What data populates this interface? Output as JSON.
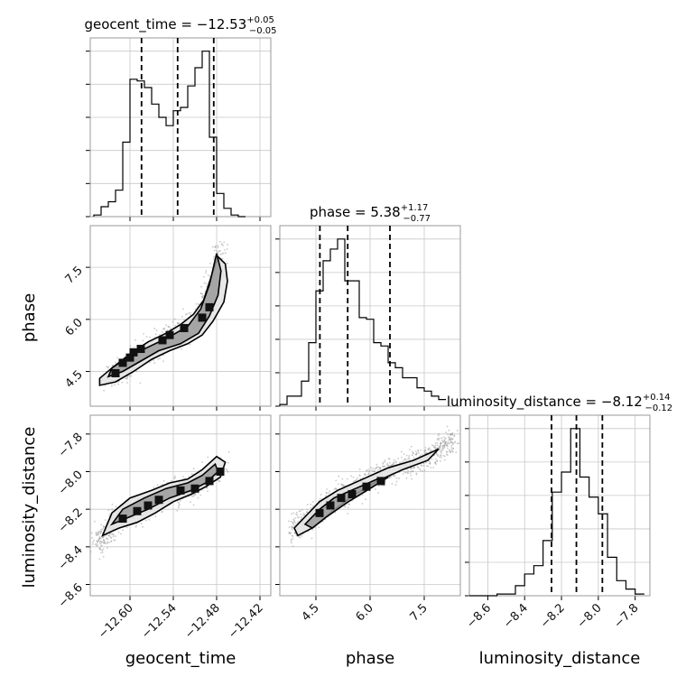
{
  "colors": {
    "grid": "#c8c8c8",
    "frame": "#999999",
    "line": "#000000",
    "scatter": "#8a8a8a",
    "contour_fill_inner": "#9a9a9a",
    "contour_fill_outer": "#e4e4e4"
  },
  "chart_data": [
    {
      "id": "hist_geocent_time",
      "type": "histogram",
      "title": "geocent_time = −12.53",
      "title_sup": "+0.05",
      "title_sub": "−0.05",
      "x": [
        -12.645,
        -12.635,
        -12.625,
        -12.615,
        -12.605,
        -12.595,
        -12.585,
        -12.575,
        -12.565,
        -12.555,
        -12.545,
        -12.535,
        -12.525,
        -12.515,
        -12.505,
        -12.495,
        -12.485,
        -12.475,
        -12.465,
        -12.455,
        -12.445
      ],
      "values": [
        0.01,
        0.06,
        0.09,
        0.16,
        0.45,
        0.83,
        0.82,
        0.78,
        0.68,
        0.6,
        0.55,
        0.64,
        0.66,
        0.79,
        0.9,
        1.0,
        0.48,
        0.14,
        0.05,
        0.01,
        0.0
      ],
      "quantile_lines": [
        -12.584,
        -12.534,
        -12.484
      ],
      "xlim": [
        -12.655,
        -12.405
      ],
      "xticks": [
        -12.6,
        -12.54,
        -12.48,
        -12.42
      ],
      "yticks": [
        0.0,
        0.2,
        0.4,
        0.6,
        0.8,
        1.0
      ],
      "grid": true
    },
    {
      "id": "hist_phase",
      "type": "histogram",
      "title": "phase = 5.38",
      "title_sup": "+1.17",
      "title_sub": "−0.77",
      "x": [
        3.6,
        3.8,
        4.0,
        4.2,
        4.4,
        4.6,
        4.8,
        5.0,
        5.2,
        5.4,
        5.6,
        5.8,
        6.0,
        6.2,
        6.4,
        6.6,
        6.8,
        7.0,
        7.2,
        7.4,
        7.6,
        7.8,
        8.0
      ],
      "values": [
        0.01,
        0.06,
        0.06,
        0.15,
        0.38,
        0.69,
        0.87,
        0.94,
        1.0,
        0.75,
        0.75,
        0.53,
        0.52,
        0.38,
        0.36,
        0.26,
        0.23,
        0.17,
        0.17,
        0.11,
        0.09,
        0.06,
        0.04
      ],
      "quantile_lines": [
        4.61,
        5.38,
        6.55
      ],
      "xlim": [
        3.5,
        8.5
      ],
      "xticks": [
        4.5,
        6.0,
        7.5
      ],
      "yticks": [
        0.0,
        0.2,
        0.4,
        0.6,
        0.8,
        1.0
      ],
      "grid": true
    },
    {
      "id": "hist_luminosity_distance",
      "type": "histogram",
      "title": "luminosity_distance = −8.12",
      "title_sup": "+0.14",
      "title_sub": "−0.12",
      "x": [
        -8.675,
        -8.625,
        -8.575,
        -8.525,
        -8.475,
        -8.425,
        -8.375,
        -8.325,
        -8.275,
        -8.225,
        -8.175,
        -8.125,
        -8.075,
        -8.025,
        -7.975,
        -7.925,
        -7.875,
        -7.825,
        -7.775
      ],
      "values": [
        0.0,
        0.0,
        0.0,
        0.01,
        0.01,
        0.06,
        0.13,
        0.18,
        0.33,
        0.62,
        0.74,
        1.0,
        0.71,
        0.59,
        0.49,
        0.23,
        0.09,
        0.04,
        0.01
      ],
      "quantile_lines": [
        -8.254,
        -8.119,
        -7.978
      ],
      "xlim": [
        -8.7,
        -7.72
      ],
      "xticks": [
        -8.6,
        -8.4,
        -8.2,
        -8.0,
        -7.8
      ],
      "yticks": [
        0.0,
        0.2,
        0.4,
        0.6,
        0.8,
        1.0
      ],
      "grid": true
    },
    {
      "id": "density_geocent_phase",
      "type": "scatter",
      "x_param": "geocent_time",
      "y_param": "phase",
      "xlim": [
        -12.655,
        -12.405
      ],
      "ylim": [
        3.5,
        8.7
      ],
      "xticks": [
        -12.6,
        -12.54,
        -12.48,
        -12.42
      ],
      "yticks": [
        4.5,
        6.0,
        7.5
      ],
      "ytick_labels": [
        "4.5",
        "6.0",
        "7.5"
      ],
      "ridge_x": [
        -12.63,
        -12.61,
        -12.59,
        -12.57,
        -12.55,
        -12.53,
        -12.51,
        -12.5,
        -12.49,
        -12.48,
        -12.475
      ],
      "ridge_y": [
        4.3,
        4.55,
        4.85,
        5.15,
        5.4,
        5.6,
        5.9,
        6.2,
        6.6,
        7.2,
        8.1
      ],
      "contour_outer": [
        [
          -12.642,
          4.1
        ],
        [
          -12.62,
          4.2
        ],
        [
          -12.595,
          4.5
        ],
        [
          -12.57,
          4.85
        ],
        [
          -12.545,
          5.1
        ],
        [
          -12.52,
          5.3
        ],
        [
          -12.5,
          5.55
        ],
        [
          -12.485,
          5.95
        ],
        [
          -12.47,
          6.5
        ],
        [
          -12.465,
          7.1
        ],
        [
          -12.468,
          7.6
        ],
        [
          -12.478,
          7.8
        ],
        [
          -12.488,
          7.2
        ],
        [
          -12.498,
          6.55
        ],
        [
          -12.512,
          6.15
        ],
        [
          -12.53,
          5.85
        ],
        [
          -12.55,
          5.6
        ],
        [
          -12.575,
          5.35
        ],
        [
          -12.6,
          5.0
        ],
        [
          -12.625,
          4.6
        ],
        [
          -12.642,
          4.3
        ]
      ],
      "contour_inner": [
        [
          -12.63,
          4.35
        ],
        [
          -12.61,
          4.5
        ],
        [
          -12.585,
          4.8
        ],
        [
          -12.56,
          5.1
        ],
        [
          -12.53,
          5.3
        ],
        [
          -12.505,
          5.6
        ],
        [
          -12.49,
          6.1
        ],
        [
          -12.478,
          6.7
        ],
        [
          -12.474,
          7.4
        ],
        [
          -12.48,
          7.9
        ],
        [
          -12.49,
          7.0
        ],
        [
          -12.502,
          6.3
        ],
        [
          -12.52,
          5.8
        ],
        [
          -12.545,
          5.5
        ],
        [
          -12.57,
          5.25
        ],
        [
          -12.6,
          4.95
        ],
        [
          -12.625,
          4.6
        ]
      ],
      "blocks": [
        [
          -12.62,
          4.45
        ],
        [
          -12.61,
          4.75
        ],
        [
          -12.6,
          4.9
        ],
        [
          -12.595,
          5.05
        ],
        [
          -12.585,
          5.15
        ],
        [
          -12.555,
          5.4
        ],
        [
          -12.545,
          5.55
        ],
        [
          -12.525,
          5.75
        ],
        [
          -12.5,
          6.05
        ],
        [
          -12.49,
          6.35
        ]
      ]
    },
    {
      "id": "density_geocent_lumdist",
      "type": "scatter",
      "x_param": "geocent_time",
      "y_param": "luminosity_distance",
      "xlim": [
        -12.655,
        -12.405
      ],
      "ylim": [
        -8.66,
        -7.7
      ],
      "xticks": [
        -12.6,
        -12.54,
        -12.48,
        -12.42
      ],
      "yticks": [
        -8.6,
        -8.4,
        -8.2,
        -8.0,
        -7.8
      ],
      "ridge_x": [
        -12.645,
        -12.63,
        -12.61,
        -12.59,
        -12.57,
        -12.55,
        -12.53,
        -12.51,
        -12.49,
        -12.47
      ],
      "ridge_y": [
        -8.38,
        -8.32,
        -8.24,
        -8.2,
        -8.16,
        -8.12,
        -8.1,
        -8.08,
        -8.03,
        -7.98
      ],
      "contour_outer": [
        [
          -12.638,
          -8.34
        ],
        [
          -12.615,
          -8.3
        ],
        [
          -12.59,
          -8.27
        ],
        [
          -12.565,
          -8.22
        ],
        [
          -12.54,
          -8.16
        ],
        [
          -12.515,
          -8.12
        ],
        [
          -12.495,
          -8.08
        ],
        [
          -12.475,
          -8.03
        ],
        [
          -12.468,
          -7.95
        ],
        [
          -12.48,
          -7.92
        ],
        [
          -12.5,
          -7.99
        ],
        [
          -12.52,
          -8.04
        ],
        [
          -12.545,
          -8.06
        ],
        [
          -12.57,
          -8.1
        ],
        [
          -12.6,
          -8.14
        ],
        [
          -12.625,
          -8.22
        ]
      ],
      "contour_inner": [
        [
          -12.625,
          -8.28
        ],
        [
          -12.6,
          -8.24
        ],
        [
          -12.575,
          -8.2
        ],
        [
          -12.545,
          -8.14
        ],
        [
          -12.515,
          -8.1
        ],
        [
          -12.495,
          -8.06
        ],
        [
          -12.478,
          -8.0
        ],
        [
          -12.482,
          -7.96
        ],
        [
          -12.5,
          -8.02
        ],
        [
          -12.52,
          -8.06
        ],
        [
          -12.55,
          -8.09
        ],
        [
          -12.58,
          -8.14
        ],
        [
          -12.61,
          -8.2
        ]
      ],
      "blocks": [
        [
          -12.61,
          -8.25
        ],
        [
          -12.59,
          -8.21
        ],
        [
          -12.575,
          -8.18
        ],
        [
          -12.56,
          -8.15
        ],
        [
          -12.53,
          -8.1
        ],
        [
          -12.51,
          -8.09
        ],
        [
          -12.49,
          -8.05
        ],
        [
          -12.475,
          -8.0
        ]
      ]
    },
    {
      "id": "density_phase_lumdist",
      "type": "scatter",
      "x_param": "phase",
      "y_param": "luminosity_distance",
      "xlim": [
        3.5,
        8.5
      ],
      "ylim": [
        -8.66,
        -7.7
      ],
      "xticks": [
        4.5,
        6.0,
        7.5
      ],
      "yticks": [
        -8.6,
        -8.4,
        -8.2,
        -8.0,
        -7.8
      ],
      "ridge_x": [
        3.8,
        4.2,
        4.6,
        5.0,
        5.5,
        6.0,
        6.5,
        7.0,
        7.5,
        8.0,
        8.3
      ],
      "ridge_y": [
        -8.32,
        -8.26,
        -8.2,
        -8.14,
        -8.1,
        -8.05,
        -8.0,
        -7.97,
        -7.93,
        -7.87,
        -7.82
      ],
      "contour_outer": [
        [
          3.9,
          -8.3
        ],
        [
          4.2,
          -8.24
        ],
        [
          4.6,
          -8.16
        ],
        [
          5.1,
          -8.1
        ],
        [
          5.8,
          -8.04
        ],
        [
          6.5,
          -7.98
        ],
        [
          7.2,
          -7.94
        ],
        [
          7.9,
          -7.88
        ],
        [
          7.6,
          -7.94
        ],
        [
          6.9,
          -7.99
        ],
        [
          6.2,
          -8.05
        ],
        [
          5.5,
          -8.13
        ],
        [
          4.9,
          -8.22
        ],
        [
          4.4,
          -8.3
        ],
        [
          4.0,
          -8.34
        ]
      ],
      "contour_inner": [
        [
          4.2,
          -8.28
        ],
        [
          4.6,
          -8.2
        ],
        [
          5.0,
          -8.14
        ],
        [
          5.6,
          -8.09
        ],
        [
          6.2,
          -8.04
        ],
        [
          6.5,
          -8.03
        ],
        [
          6.0,
          -8.09
        ],
        [
          5.4,
          -8.16
        ],
        [
          4.8,
          -8.24
        ],
        [
          4.4,
          -8.3
        ]
      ],
      "blocks": [
        [
          4.6,
          -8.22
        ],
        [
          4.9,
          -8.18
        ],
        [
          5.2,
          -8.14
        ],
        [
          5.5,
          -8.12
        ],
        [
          5.9,
          -8.08
        ],
        [
          6.3,
          -8.05
        ]
      ]
    }
  ],
  "axis_labels": {
    "phase_y": "phase",
    "lumdist_y": "luminosity_distance",
    "geocent_x": "geocent_time",
    "phase_x": "phase",
    "lumdist_x": "luminosity_distance"
  }
}
